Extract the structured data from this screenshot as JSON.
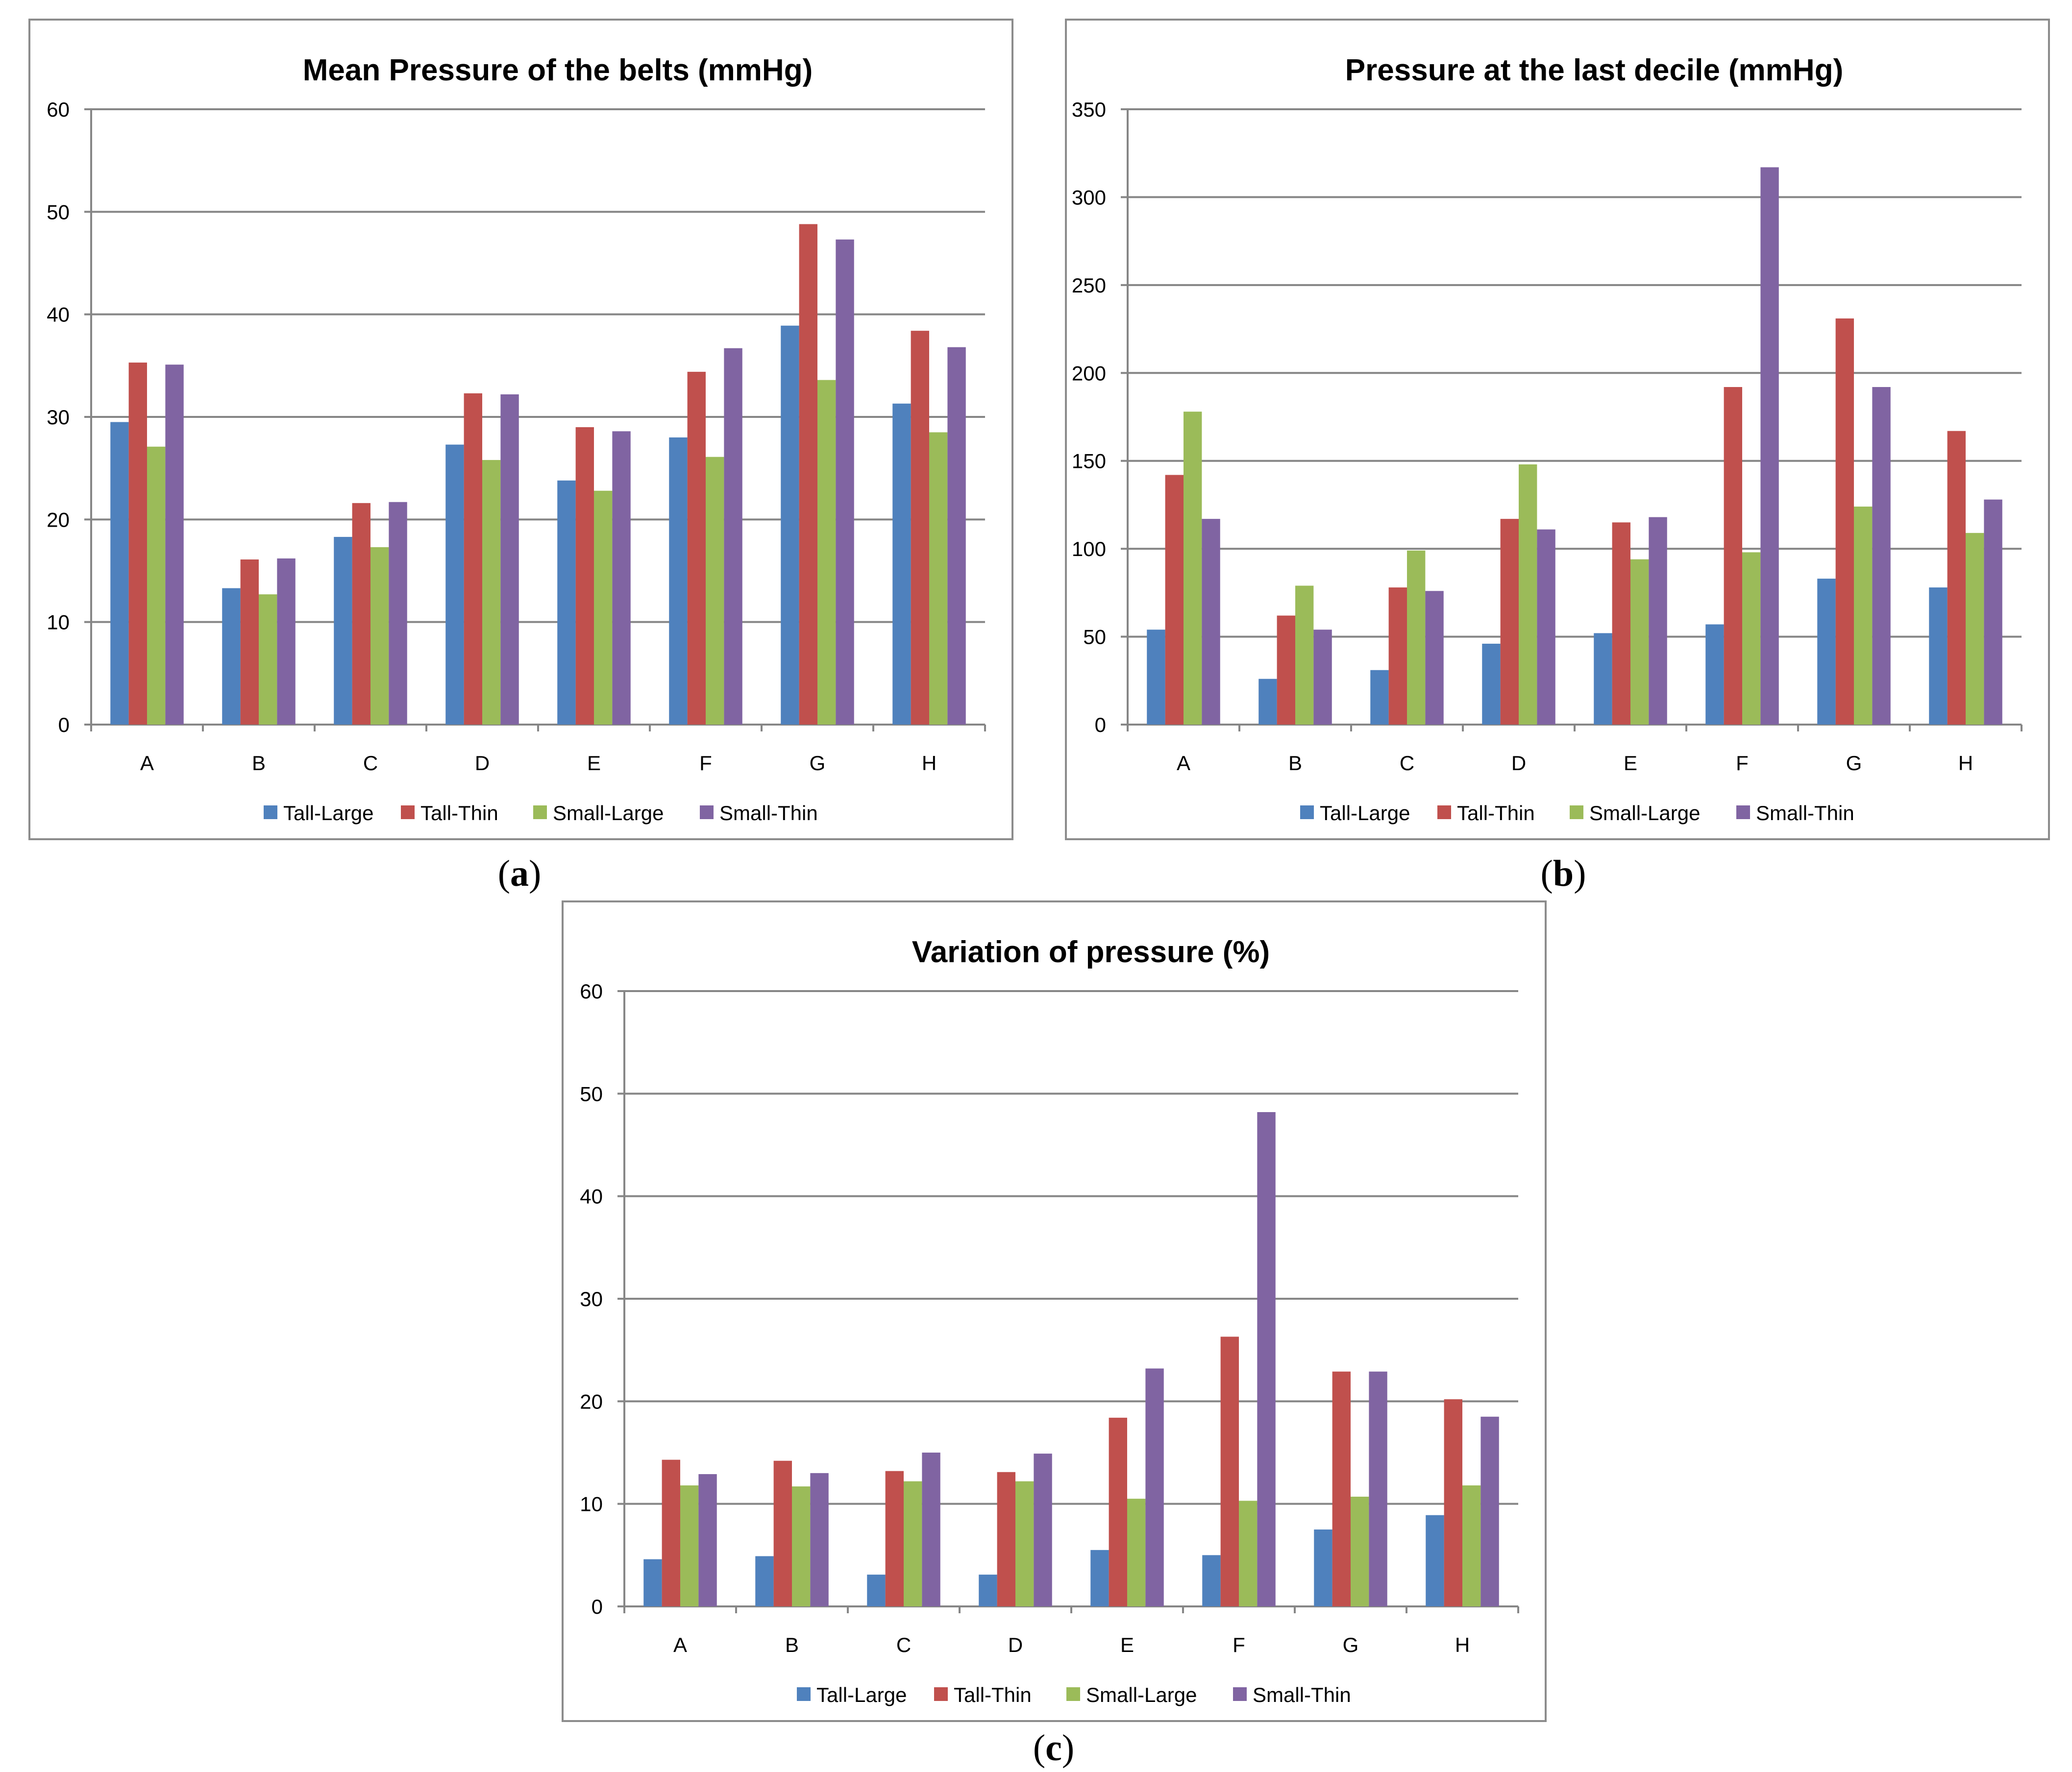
{
  "colors": {
    "Tall-Large": "#4f81bd",
    "Tall-Thin": "#c0504d",
    "Small-Large": "#9bbb59",
    "Small-Thin": "#8064a2",
    "grid": "#868686",
    "axis": "#868686",
    "text": "#000000"
  },
  "captions": {
    "a": {
      "open": "(",
      "letter": "a",
      "close": ")"
    },
    "b": {
      "open": "(",
      "letter": "b",
      "close": ")"
    },
    "c": {
      "open": "(",
      "letter": "c",
      "close": ")"
    }
  },
  "chart_data": [
    {
      "id": "a",
      "type": "bar",
      "title": "Mean Pressure of the belts (mmHg)",
      "xlabel": "",
      "ylabel": "",
      "categories": [
        "A",
        "B",
        "C",
        "D",
        "E",
        "F",
        "G",
        "H"
      ],
      "ylim": [
        0,
        60
      ],
      "yticks": [
        0,
        10,
        20,
        30,
        40,
        50,
        60
      ],
      "grid": true,
      "legend": "bottom",
      "series": [
        {
          "name": "Tall-Large",
          "values": [
            29.5,
            13.3,
            18.3,
            27.3,
            23.8,
            28.0,
            38.9,
            31.3
          ]
        },
        {
          "name": "Tall-Thin",
          "values": [
            35.3,
            16.1,
            21.6,
            32.3,
            29.0,
            34.4,
            48.8,
            38.4
          ]
        },
        {
          "name": "Small-Large",
          "values": [
            27.1,
            12.7,
            17.3,
            25.8,
            22.8,
            26.1,
            33.6,
            28.5
          ]
        },
        {
          "name": "Small-Thin",
          "values": [
            35.1,
            16.2,
            21.7,
            32.2,
            28.6,
            36.7,
            47.3,
            36.8
          ]
        }
      ]
    },
    {
      "id": "b",
      "type": "bar",
      "title": "Pressure at the last decile (mmHg)",
      "xlabel": "",
      "ylabel": "",
      "categories": [
        "A",
        "B",
        "C",
        "D",
        "E",
        "F",
        "G",
        "H"
      ],
      "ylim": [
        0,
        350
      ],
      "yticks": [
        0,
        50,
        100,
        150,
        200,
        250,
        300,
        350
      ],
      "grid": true,
      "legend": "bottom",
      "series": [
        {
          "name": "Tall-Large",
          "values": [
            54,
            26,
            31,
            46,
            52,
            57,
            83,
            78
          ]
        },
        {
          "name": "Tall-Thin",
          "values": [
            142,
            62,
            78,
            117,
            115,
            192,
            231,
            167
          ]
        },
        {
          "name": "Small-Large",
          "values": [
            178,
            79,
            99,
            148,
            94,
            98,
            124,
            109
          ]
        },
        {
          "name": "Small-Thin",
          "values": [
            117,
            54,
            76,
            111,
            118,
            317,
            192,
            128
          ]
        }
      ]
    },
    {
      "id": "c",
      "type": "bar",
      "title": "Variation of pressure (%)",
      "xlabel": "",
      "ylabel": "",
      "categories": [
        "A",
        "B",
        "C",
        "D",
        "E",
        "F",
        "G",
        "H"
      ],
      "ylim": [
        0,
        60
      ],
      "yticks": [
        0,
        10,
        20,
        30,
        40,
        50,
        60
      ],
      "grid": true,
      "legend": "bottom",
      "series": [
        {
          "name": "Tall-Large",
          "values": [
            4.6,
            4.9,
            3.1,
            3.1,
            5.5,
            5.0,
            7.5,
            8.9
          ]
        },
        {
          "name": "Tall-Thin",
          "values": [
            14.3,
            14.2,
            13.2,
            13.1,
            18.4,
            26.3,
            22.9,
            20.2
          ]
        },
        {
          "name": "Small-Large",
          "values": [
            11.8,
            11.7,
            12.2,
            12.2,
            10.5,
            10.3,
            10.7,
            11.8
          ]
        },
        {
          "name": "Small-Thin",
          "values": [
            12.9,
            13.0,
            15.0,
            14.9,
            23.2,
            48.2,
            22.9,
            18.5
          ]
        }
      ]
    }
  ]
}
